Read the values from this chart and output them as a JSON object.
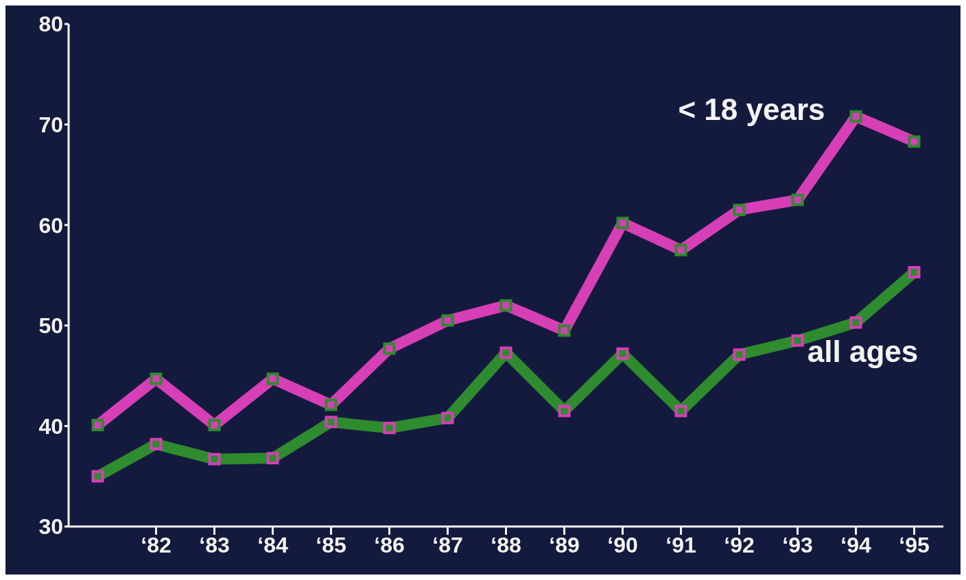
{
  "chart_data": {
    "type": "line",
    "categories": [
      null,
      "‘82",
      "‘83",
      "‘84",
      "‘85",
      "‘86",
      "‘87",
      "‘88",
      "‘89",
      "‘90",
      "‘91",
      "‘92",
      "‘93",
      "‘94",
      "‘95"
    ],
    "series": [
      {
        "name": "< 18 years",
        "color": "#d63fb5",
        "values": [
          40.1,
          44.7,
          40.1,
          44.7,
          42.1,
          47.7,
          50.5,
          52.0,
          49.5,
          60.2,
          57.5,
          61.5,
          62.5,
          70.8,
          68.3
        ]
      },
      {
        "name": "all ages",
        "color": "#2e8b2e",
        "values": [
          35.0,
          38.2,
          36.7,
          36.8,
          40.4,
          39.8,
          40.8,
          47.3,
          41.5,
          47.2,
          41.5,
          47.1,
          48.5,
          50.3,
          55.3
        ]
      }
    ],
    "ylim": [
      30,
      80
    ],
    "yticks": [
      30,
      40,
      50,
      60,
      70,
      80
    ],
    "grid": false,
    "legend": false,
    "marker": "square",
    "line_style": "solid"
  }
}
